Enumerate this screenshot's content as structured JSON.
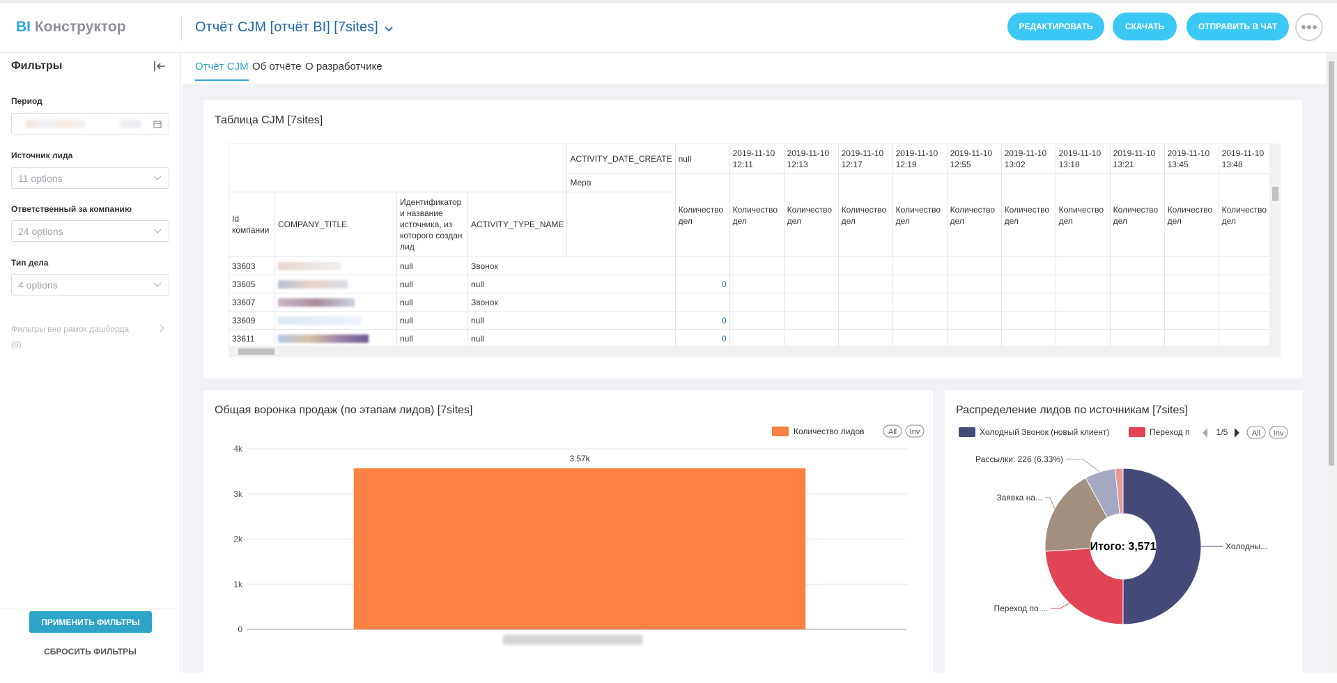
{
  "header": {
    "logo_bi": "BI",
    "logo_name": "Конструктор",
    "report_title": "Отчёт CJM [отчёт BI] [7sites]",
    "buttons": [
      "РЕДАКТИРОВАТЬ",
      "СКАЧАТЬ",
      "ОТПРАВИТЬ В ЧАТ"
    ]
  },
  "sidebar": {
    "title": "Фильтры",
    "filters": [
      {
        "label": "Период"
      },
      {
        "label": "Источник лида",
        "placeholder": "11 options"
      },
      {
        "label": "Ответственный за компанию",
        "placeholder": "24 options"
      },
      {
        "label": "Тип дела",
        "placeholder": "4 options"
      }
    ],
    "outside_filters": "Фильтры вне рамок дашборда",
    "outside_count": "(0)",
    "apply": "ПРИМЕНИТЬ ФИЛЬТРЫ",
    "reset": "СБРОСИТЬ ФИЛЬТРЫ"
  },
  "tabs": [
    "Отчёт CJM",
    "Об отчёте",
    "О разработчике"
  ],
  "active_tab": 0,
  "table": {
    "title": "Таблица CJM [7sites]",
    "pivot_column_field": "ACTIVITY_DATE_CREATE",
    "measure_field": "Мера",
    "row_fields": [
      "Id компании",
      "COMPANY_TITLE",
      "Идентификатор и название источника, из которого создан лид",
      "ACTIVITY_TYPE_NAME"
    ],
    "columns": [
      "null",
      "2019-11-10 12:11",
      "2019-11-10 12:13",
      "2019-11-10 12:17",
      "2019-11-10 12:19",
      "2019-11-10 12:55",
      "2019-11-10 13:02",
      "2019-11-10 13:18",
      "2019-11-10 13:21",
      "2019-11-10 13:45",
      "2019-11-10 13:48"
    ],
    "measure": "Количество дел",
    "rows": [
      {
        "id": "33603",
        "source": "null",
        "type": "Звонок",
        "values": [
          null
        ]
      },
      {
        "id": "33605",
        "source": "null",
        "type": "null",
        "values": [
          0
        ]
      },
      {
        "id": "33607",
        "source": "null",
        "type": "Звонок",
        "values": [
          null
        ]
      },
      {
        "id": "33609",
        "source": "null",
        "type": "null",
        "values": [
          0
        ]
      },
      {
        "id": "33611",
        "source": "null",
        "type": "null",
        "values": [
          0
        ]
      }
    ]
  },
  "bar_chart": {
    "type": "bar",
    "title": "Общая воронка продаж (по этапам лидов) [7sites]",
    "categories": [
      null
    ],
    "series": [
      {
        "name": "Количество лидов",
        "color": "#fe8144",
        "values": [
          3570
        ],
        "value_labels": [
          "3.57k"
        ]
      }
    ],
    "ylim": [
      0,
      4000
    ],
    "yticks": [
      0,
      {
        "value": 1000,
        "label": "1k"
      },
      {
        "value": 2000,
        "label": "2k"
      },
      {
        "value": 3000,
        "label": "3k"
      },
      {
        "value": 4000,
        "label": "4k"
      }
    ],
    "grid": true,
    "legend_buttons": [
      "All",
      "Inv"
    ]
  },
  "pie_chart": {
    "type": "pie",
    "title": "Распределение лидов по источникам [7sites]",
    "total_label": "Итого: 3,571",
    "legend": [
      {
        "name": "Холодный Звонок (новый клиент)",
        "color": "#454a78"
      },
      {
        "name": "Переход п",
        "color": "#e04455"
      }
    ],
    "legend_page": "1/5",
    "legend_buttons": [
      "All",
      "Inv"
    ],
    "categories": [
      "Холодны...",
      "Переход по ...",
      "Заявка на...",
      "Рассылки: 226 (6.33%)",
      null
    ],
    "values": [
      1786,
      857,
      643,
      226,
      59
    ],
    "colors": [
      "#454a78",
      "#e04455",
      "#a28f7d",
      "#a5a8c2",
      "#e79a9a"
    ]
  }
}
